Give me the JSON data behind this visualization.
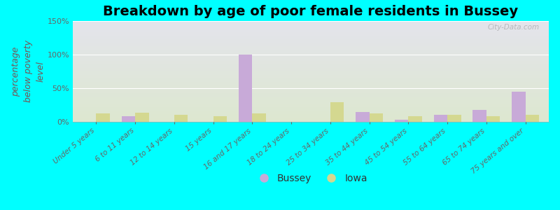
{
  "title": "Breakdown by age of poor female residents in Bussey",
  "ylabel": "percentage\nbelow poverty\nlevel",
  "background_color": "#00FFFF",
  "categories": [
    "Under 5 years",
    "6 to 11 years",
    "12 to 14 years",
    "15 years",
    "16 and 17 years",
    "18 to 24 years",
    "25 to 34 years",
    "35 to 44 years",
    "45 to 54 years",
    "55 to 64 years",
    "65 to 74 years",
    "75 years and over"
  ],
  "bussey": [
    0,
    8,
    0,
    0,
    100,
    0,
    0,
    15,
    3,
    10,
    18,
    45
  ],
  "iowa": [
    12,
    14,
    10,
    8,
    13,
    0,
    29,
    12,
    8,
    10,
    8,
    10
  ],
  "bussey_color": "#c8aad8",
  "iowa_color": "#d4d890",
  "ylim": [
    0,
    150
  ],
  "yticks": [
    0,
    50,
    100,
    150
  ],
  "ytick_labels": [
    "0%",
    "50%",
    "100%",
    "150%"
  ],
  "bar_width": 0.35,
  "title_fontsize": 14,
  "ylabel_fontsize": 9,
  "tick_fontsize": 8,
  "xtick_fontsize": 7.5,
  "legend_fontsize": 10,
  "watermark": "City-Data.com"
}
